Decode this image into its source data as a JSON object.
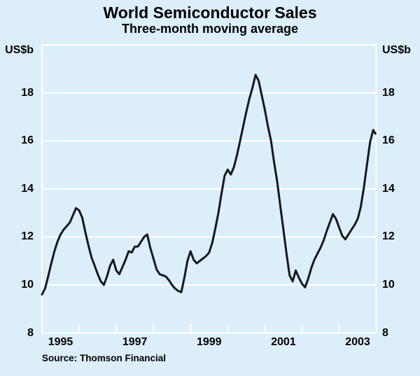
{
  "chart_data": {
    "type": "line",
    "title": "World Semiconductor Sales",
    "subtitle": "Three-month moving average",
    "unit_label_left": "US$b",
    "unit_label_right": "US$b",
    "source": "Source: Thomson Financial",
    "xlim": [
      1995,
      2004
    ],
    "ylim": [
      8,
      20
    ],
    "grid": "horizontal-white",
    "y_tick_labels": [
      18,
      16,
      14,
      12,
      10,
      8
    ],
    "y_gridline_values": [
      10,
      12,
      14,
      16,
      18
    ],
    "x_tick_years": [
      1996,
      1997,
      1998,
      1999,
      2000,
      2001,
      2002,
      2003
    ],
    "x_axis_labels": [
      {
        "label": "1995",
        "center_year": 1995.5
      },
      {
        "label": "1997",
        "center_year": 1997.5
      },
      {
        "label": "1999",
        "center_year": 1999.5
      },
      {
        "label": "2001",
        "center_year": 2001.5
      },
      {
        "label": "2003",
        "center_year": 2003.5
      }
    ],
    "colors": {
      "background": "#dbeefa",
      "grid": "#ffffff",
      "line": "#16181c",
      "text": "#000000"
    },
    "series": [
      {
        "name": "World semiconductor sales, 3-month moving average (US$b)",
        "frequency": "monthly",
        "start_year": 1995,
        "values": [
          9.6,
          9.85,
          10.35,
          10.9,
          11.4,
          11.8,
          12.1,
          12.3,
          12.45,
          12.6,
          12.9,
          13.2,
          13.1,
          12.8,
          12.2,
          11.65,
          11.15,
          10.8,
          10.45,
          10.15,
          10.0,
          10.35,
          10.8,
          11.05,
          10.6,
          10.45,
          10.75,
          11.05,
          11.4,
          11.35,
          11.6,
          11.6,
          11.8,
          12.0,
          12.1,
          11.55,
          11.1,
          10.65,
          10.45,
          10.4,
          10.35,
          10.2,
          10.0,
          9.85,
          9.75,
          9.7,
          10.3,
          11.0,
          11.4,
          11.05,
          10.9,
          11.0,
          11.1,
          11.2,
          11.35,
          11.75,
          12.35,
          13.0,
          13.8,
          14.55,
          14.8,
          14.6,
          14.9,
          15.4,
          16.0,
          16.6,
          17.2,
          17.75,
          18.2,
          18.75,
          18.5,
          17.9,
          17.3,
          16.6,
          16.0,
          15.1,
          14.3,
          13.3,
          12.3,
          11.3,
          10.4,
          10.15,
          10.6,
          10.3,
          10.05,
          9.9,
          10.25,
          10.7,
          11.05,
          11.3,
          11.55,
          11.85,
          12.25,
          12.6,
          12.95,
          12.75,
          12.4,
          12.05,
          11.9,
          12.1,
          12.3,
          12.5,
          12.75,
          13.25,
          14.05,
          15.0,
          15.95,
          16.45
        ],
        "extra_end_points": [
          [
            2003.98,
            16.3
          ]
        ]
      }
    ]
  }
}
